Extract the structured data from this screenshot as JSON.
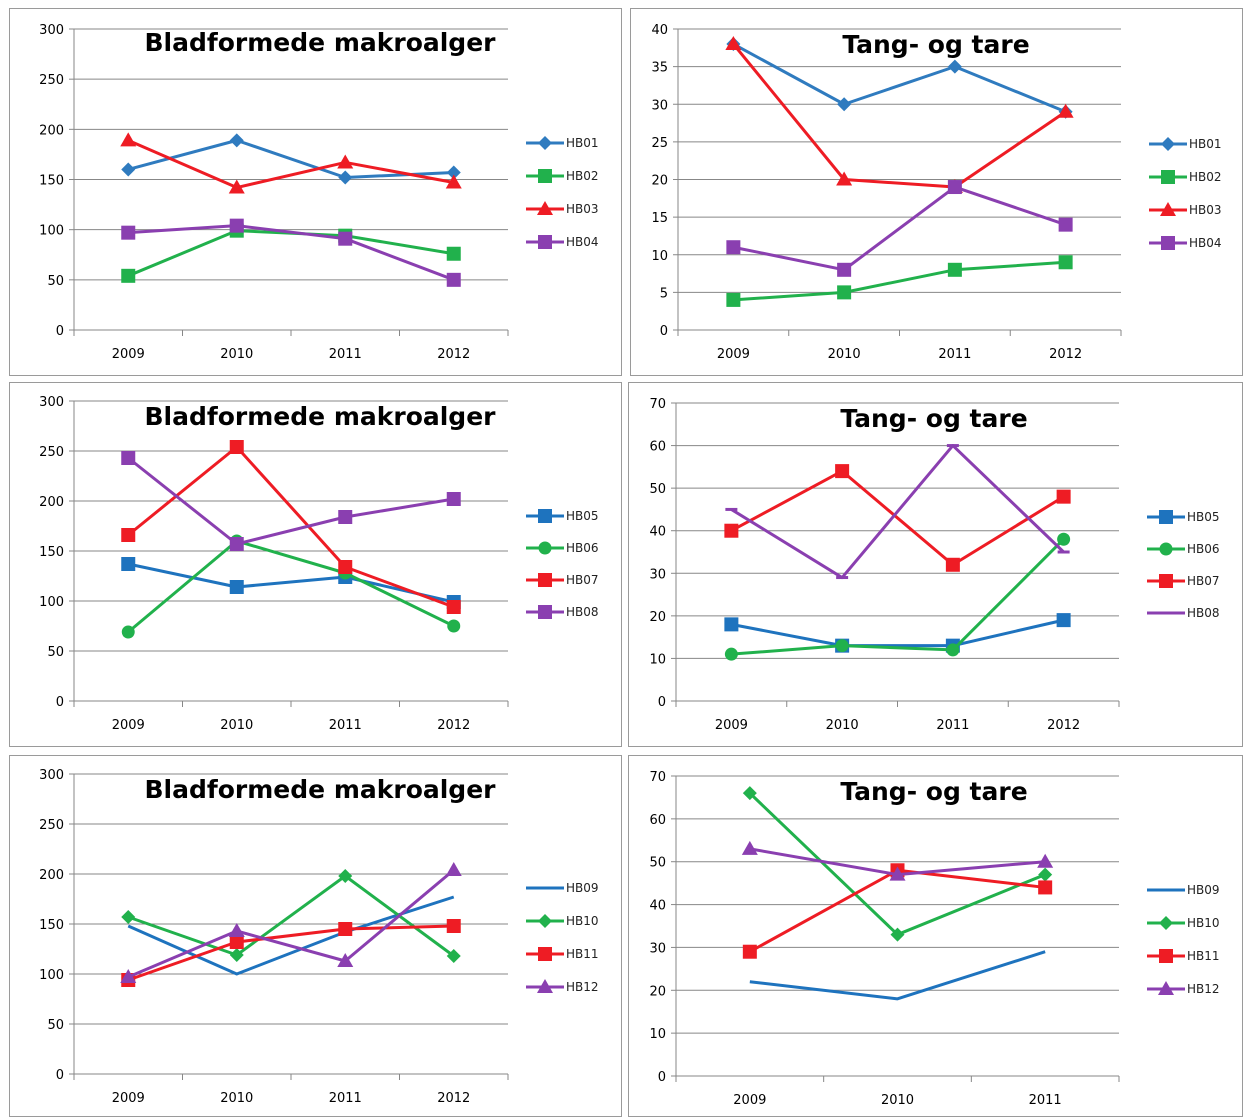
{
  "chart_data": [
    {
      "type": "line",
      "title": "Bladformede makroalger",
      "categories": [
        "2009",
        "2010",
        "2011",
        "2012"
      ],
      "ylim": [
        0,
        300
      ],
      "yticks": [
        0,
        50,
        100,
        150,
        200,
        250,
        300
      ],
      "grid": true,
      "legend": "right",
      "series": [
        {
          "name": "HB01",
          "color": "#2f7bbf",
          "marker": "diamond",
          "values": [
            160,
            189,
            152,
            157
          ]
        },
        {
          "name": "HB02",
          "color": "#21b14c",
          "marker": "square",
          "values": [
            54,
            99,
            94,
            76
          ]
        },
        {
          "name": "HB03",
          "color": "#ee1c24",
          "marker": "triangle",
          "values": [
            189,
            142,
            167,
            147
          ]
        },
        {
          "name": "HB04",
          "color": "#8a3fb0",
          "marker": "square",
          "values": [
            97,
            104,
            91,
            50
          ]
        }
      ]
    },
    {
      "type": "line",
      "title": "Tang- og tare",
      "categories": [
        "2009",
        "2010",
        "2011",
        "2012"
      ],
      "ylim": [
        0,
        40
      ],
      "yticks": [
        0,
        5,
        10,
        15,
        20,
        25,
        30,
        35,
        40
      ],
      "grid": true,
      "legend": "right",
      "series": [
        {
          "name": "HB01",
          "color": "#2f7bbf",
          "marker": "diamond",
          "values": [
            38,
            30,
            35,
            29
          ]
        },
        {
          "name": "HB02",
          "color": "#21b14c",
          "marker": "square",
          "values": [
            4,
            5,
            8,
            9
          ]
        },
        {
          "name": "HB03",
          "color": "#ee1c24",
          "marker": "triangle",
          "values": [
            38,
            20,
            19,
            29
          ]
        },
        {
          "name": "HB04",
          "color": "#8a3fb0",
          "marker": "square",
          "values": [
            11,
            8,
            19,
            14
          ]
        }
      ]
    },
    {
      "type": "line",
      "title": "Bladformede makroalger",
      "categories": [
        "2009",
        "2010",
        "2011",
        "2012"
      ],
      "ylim": [
        0,
        300
      ],
      "yticks": [
        0,
        50,
        100,
        150,
        200,
        250,
        300
      ],
      "grid": true,
      "legend": "right",
      "series": [
        {
          "name": "HB05",
          "color": "#1e73be",
          "marker": "square",
          "values": [
            137,
            114,
            124,
            99
          ]
        },
        {
          "name": "HB06",
          "color": "#21b14c",
          "marker": "circle",
          "values": [
            69,
            160,
            128,
            75
          ]
        },
        {
          "name": "HB07",
          "color": "#ee1c24",
          "marker": "square",
          "values": [
            166,
            254,
            134,
            94
          ]
        },
        {
          "name": "HB08",
          "color": "#8a3fb0",
          "marker": "square",
          "values": [
            243,
            157,
            184,
            202
          ]
        }
      ]
    },
    {
      "type": "line",
      "title": "Tang- og tare",
      "categories": [
        "2009",
        "2010",
        "2011",
        "2012"
      ],
      "ylim": [
        0,
        70
      ],
      "yticks": [
        0,
        10,
        20,
        30,
        40,
        50,
        60,
        70
      ],
      "grid": true,
      "legend": "right",
      "series": [
        {
          "name": "HB05",
          "color": "#1e73be",
          "marker": "square",
          "values": [
            18,
            13,
            13,
            19
          ]
        },
        {
          "name": "HB06",
          "color": "#21b14c",
          "marker": "circle",
          "values": [
            11,
            13,
            12,
            38
          ]
        },
        {
          "name": "HB07",
          "color": "#ee1c24",
          "marker": "square",
          "values": [
            40,
            54,
            32,
            48
          ]
        },
        {
          "name": "HB08",
          "color": "#8a3fb0",
          "marker": "dash",
          "values": [
            45,
            29,
            60,
            35
          ]
        }
      ]
    },
    {
      "type": "line",
      "title": "Bladformede makroalger",
      "categories": [
        "2009",
        "2010",
        "2011",
        "2012"
      ],
      "ylim": [
        0,
        300
      ],
      "yticks": [
        0,
        50,
        100,
        150,
        200,
        250,
        300
      ],
      "grid": true,
      "legend": "right",
      "series": [
        {
          "name": "HB09",
          "color": "#1e73be",
          "marker": "none",
          "values": [
            148,
            100,
            142,
            177
          ]
        },
        {
          "name": "HB10",
          "color": "#21b14c",
          "marker": "diamond",
          "values": [
            157,
            119,
            198,
            118
          ]
        },
        {
          "name": "HB11",
          "color": "#ee1c24",
          "marker": "square",
          "values": [
            94,
            132,
            145,
            148
          ]
        },
        {
          "name": "HB12",
          "color": "#8a3fb0",
          "marker": "triangle",
          "values": [
            97,
            143,
            113,
            204
          ]
        }
      ]
    },
    {
      "type": "line",
      "title": "Tang- og tare",
      "categories": [
        "2009",
        "2010",
        "2011"
      ],
      "ylim": [
        0,
        70
      ],
      "yticks": [
        0,
        10,
        20,
        30,
        40,
        50,
        60,
        70
      ],
      "grid": true,
      "legend": "right",
      "series": [
        {
          "name": "HB09",
          "color": "#1e73be",
          "marker": "none",
          "values": [
            22,
            18,
            29
          ]
        },
        {
          "name": "HB10",
          "color": "#21b14c",
          "marker": "diamond",
          "values": [
            66,
            33,
            47
          ]
        },
        {
          "name": "HB11",
          "color": "#ee1c24",
          "marker": "square",
          "values": [
            29,
            48,
            44
          ]
        },
        {
          "name": "HB12",
          "color": "#8a3fb0",
          "marker": "triangle",
          "values": [
            53,
            47,
            50
          ]
        }
      ]
    }
  ]
}
